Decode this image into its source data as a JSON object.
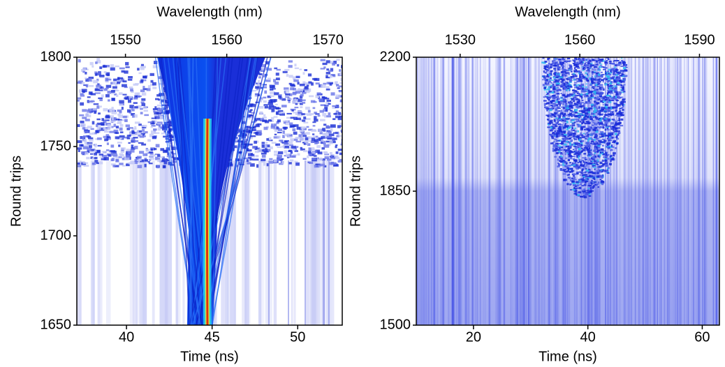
{
  "chart_data": [
    {
      "type": "heatmap",
      "xlabel": "Time (ns)",
      "ylabel": "Round trips",
      "x2label": "Wavelength (nm)",
      "xlim": [
        37.1,
        52.6
      ],
      "xticks": [
        40,
        45,
        50
      ],
      "x2lim": [
        1545.2,
        1571.4
      ],
      "x2ticks": [
        1550,
        1560,
        1570
      ],
      "ylim": [
        1650,
        1800
      ],
      "yticks": [
        1650,
        1700,
        1750,
        1800
      ]
    },
    {
      "type": "heatmap",
      "xlabel": "Time (ns)",
      "ylabel": "Round trips",
      "x2label": "Wavelength (nm)",
      "xlim": [
        10,
        63
      ],
      "xticks": [
        20,
        40,
        60
      ],
      "x2lim": [
        1519,
        1595
      ],
      "x2ticks": [
        1530,
        1560,
        1590
      ],
      "ylim": [
        1500,
        2200
      ],
      "yticks": [
        1500,
        1850,
        2200
      ]
    }
  ]
}
